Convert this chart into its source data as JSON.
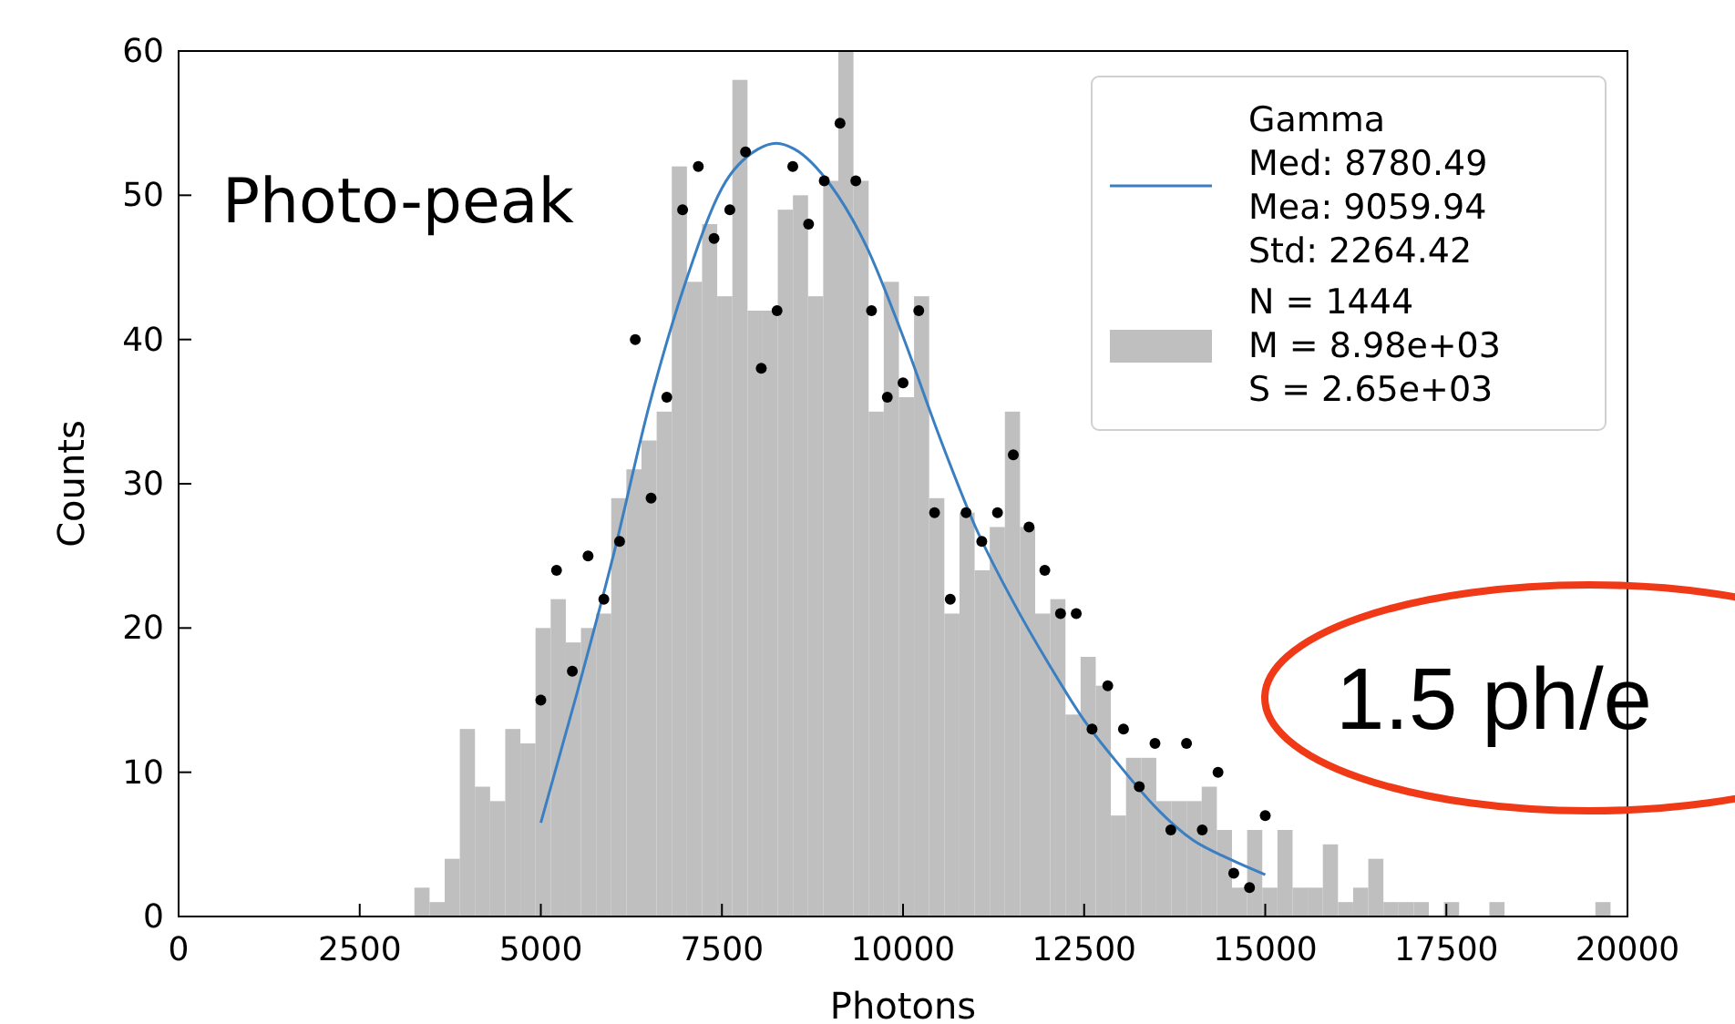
{
  "chart_data": {
    "type": "histogram",
    "xlabel": "Photons",
    "ylabel": "Counts",
    "xlim": [
      0,
      20000
    ],
    "xticks": [
      0,
      2500,
      5000,
      7500,
      10000,
      12500,
      15000,
      17500,
      20000
    ],
    "ylim": [
      0,
      60
    ],
    "yticks": [
      0,
      10,
      20,
      30,
      40,
      50,
      60
    ],
    "grid": false,
    "legend": "top right",
    "annotations": [
      "Photo-peak",
      "1.5 ph/e"
    ],
    "series": [
      {
        "name": "N = 1444\nM = 8.98e+03\nS = 2.65e+03",
        "color": "#bfbfbf",
        "bins": [
          3255,
          3464,
          3673,
          3882,
          4091,
          4300,
          4509,
          4718,
          4927,
          5136,
          5345,
          5554,
          5763,
          5972,
          6181,
          6390,
          6599,
          6808,
          7017,
          7226,
          7435,
          7644,
          7853,
          8062,
          8271,
          8480,
          8689,
          8898,
          9107,
          9316,
          9525,
          9734,
          9943,
          10152,
          10361,
          10570,
          10779,
          10988,
          11197,
          11406,
          11615,
          11824,
          12033,
          12242,
          12451,
          12660,
          12869,
          13078,
          13287,
          13496,
          13705,
          13914,
          14123,
          14332,
          14541,
          14750,
          14959,
          15168,
          15377,
          15586,
          15795,
          16004,
          16213,
          16422,
          16631,
          16840,
          17049,
          17258,
          17467,
          17676,
          17885,
          18094,
          18303,
          18512,
          18721,
          18930,
          19139,
          19348,
          19557,
          19766,
          19975
        ],
        "values": [
          2,
          1,
          4,
          13,
          9,
          8,
          13,
          12,
          20,
          22,
          19,
          20,
          21,
          29,
          31,
          33,
          35,
          52,
          44,
          48,
          43,
          58,
          42,
          42,
          49,
          50,
          43,
          51,
          60,
          51,
          35,
          44,
          36,
          43,
          29,
          21,
          28,
          24,
          27,
          35,
          27,
          21,
          22,
          14,
          18,
          16,
          7,
          11,
          11,
          8,
          8,
          8,
          9,
          6,
          2,
          6,
          2,
          6,
          2,
          2,
          5,
          1,
          2,
          4,
          1,
          1,
          1,
          0,
          1,
          0,
          0,
          1,
          0,
          0,
          0,
          0,
          0,
          0,
          1,
          0
        ]
      },
      {
        "type": "line",
        "name": "Gamma\nMed: 8780.49\nMea: 9059.94\nStd: 2264.42",
        "color": "#3a7fc1",
        "line_style": "solid",
        "x": [
          5000,
          5500,
          6000,
          6500,
          7000,
          7500,
          8000,
          8250,
          8500,
          9000,
          9500,
          10000,
          10500,
          11000,
          11500,
          12000,
          12500,
          13000,
          13500,
          14000,
          14500,
          15000
        ],
        "values": [
          6.5,
          15.5,
          25,
          35.5,
          44,
          50.5,
          53.2,
          53.6,
          53.2,
          50.7,
          46.4,
          40.2,
          33.3,
          27,
          22,
          17.6,
          13.6,
          10.4,
          7.5,
          5.3,
          4,
          2.9
        ]
      },
      {
        "type": "scatter",
        "color": "#000000",
        "marker": "circle",
        "x": [
          5000,
          5217,
          5435,
          5652,
          5870,
          6087,
          6304,
          6522,
          6739,
          6957,
          7174,
          7391,
          7609,
          7826,
          8043,
          8261,
          8478,
          8696,
          8913,
          9130,
          9348,
          9565,
          9783,
          10000,
          10217,
          10435,
          10652,
          10870,
          11087,
          11304,
          11522,
          11739,
          11957,
          12174,
          12391,
          12609,
          12826,
          13043,
          13261,
          13478,
          13696,
          13913,
          14130,
          14348,
          14565,
          14783,
          15000
        ],
        "values": [
          15,
          24,
          17,
          25,
          22,
          26,
          40,
          29,
          36,
          49,
          52,
          47,
          49,
          53,
          38,
          42,
          52,
          48,
          51,
          55,
          51,
          42,
          36,
          37,
          42,
          28,
          22,
          28,
          26,
          28,
          32,
          27,
          24,
          21,
          21,
          13,
          16,
          13,
          9,
          12,
          6,
          12,
          6,
          10,
          3,
          2,
          7
        ]
      }
    ]
  }
}
